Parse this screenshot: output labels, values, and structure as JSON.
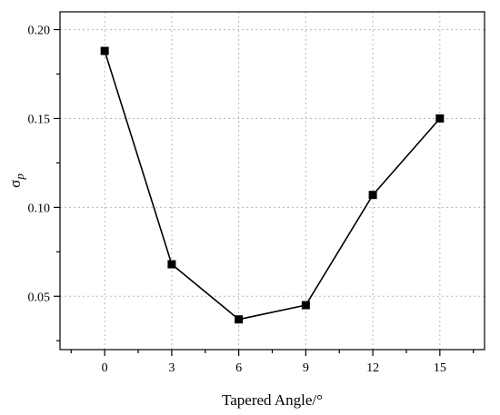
{
  "chart_data": {
    "type": "line",
    "xlabel": "Tapered Angle/°",
    "ylabel": "σ",
    "ylabel_subscript": "p",
    "x": [
      0,
      3,
      6,
      9,
      12,
      15
    ],
    "xticks": [
      "0",
      "3",
      "6",
      "9",
      "12",
      "15"
    ],
    "xlim": [
      -2,
      17
    ],
    "yticks": [
      "0.05",
      "0.10",
      "0.15",
      "0.20"
    ],
    "ytick_values": [
      0.05,
      0.1,
      0.15,
      0.2
    ],
    "ylim": [
      0.02,
      0.21
    ],
    "grid": true,
    "series": [
      {
        "values": [
          0.188,
          0.068,
          0.037,
          0.045,
          0.107,
          0.15
        ],
        "color": "#000000",
        "marker": "square"
      }
    ]
  }
}
